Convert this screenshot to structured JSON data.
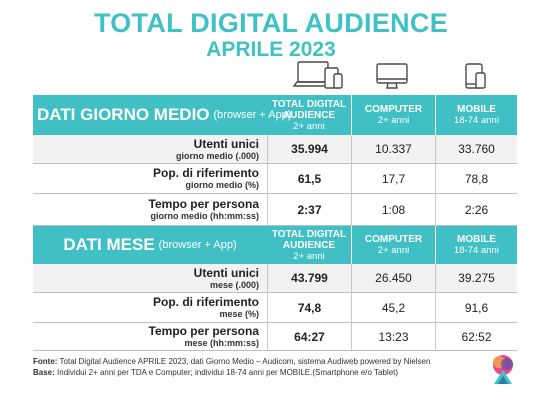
{
  "title": {
    "line1": "TOTAL DIGITAL AUDIENCE",
    "line2": "APRILE 2023"
  },
  "icons": [
    "multi-device-icon",
    "computer-monitor-icon",
    "mobile-devices-icon"
  ],
  "colors": {
    "accent": "#40c0c5",
    "row_alt": "#f2f2f2"
  },
  "section1": {
    "title": "DATI GIORNO MEDIO",
    "subtitle": "(browser + App)",
    "col_tda": "TOTAL DIGITAL AUDIENCE",
    "col_tda_sub": "2+ anni",
    "col_comp": "COMPUTER",
    "col_comp_sub": "2+ anni",
    "col_mob": "MOBILE",
    "col_mob_sub": "18-74 anni",
    "rows": [
      {
        "label": "Utenti unici",
        "sub": "giorno medio (.000)",
        "tda": "35.994",
        "comp": "10.337",
        "mob": "33.760"
      },
      {
        "label": "Pop. di riferimento",
        "sub": "giorno medio (%)",
        "tda": "61,5",
        "comp": "17,7",
        "mob": "78,8"
      },
      {
        "label": "Tempo per persona",
        "sub": "giorno medio (hh:mm:ss)",
        "tda": "2:37",
        "comp": "1:08",
        "mob": "2:26"
      }
    ]
  },
  "section2": {
    "title": "DATI MESE",
    "subtitle": "(browser + App)",
    "col_tda": "TOTAL DIGITAL AUDIENCE",
    "col_tda_sub": "2+ anni",
    "col_comp": "COMPUTER",
    "col_comp_sub": "2+ anni",
    "col_mob": "MOBILE",
    "col_mob_sub": "18-74 anni",
    "rows": [
      {
        "label": "Utenti unici",
        "sub": "mese (.000)",
        "tda": "43.799",
        "comp": "26.450",
        "mob": "39.275"
      },
      {
        "label": "Pop. di riferimento",
        "sub": "mese (%)",
        "tda": "74,8",
        "comp": "45,2",
        "mob": "91,6"
      },
      {
        "label": "Tempo per persona",
        "sub": "mese (hh:mm:ss)",
        "tda": "64:27",
        "comp": "13:23",
        "mob": "62:52"
      }
    ]
  },
  "footer": {
    "fonte_label": "Fonte:",
    "fonte_text": "Total Digital Audience APRILE 2023, dati Giorno Medio – Audicom, sistema Audiweb powered by Nielsen",
    "base_label": "Base:",
    "base_text": "Individui 2+ anni per TDA e Computer; individui 18-74 anni per MOBILE.(Smartphone e/o Tablet)"
  }
}
